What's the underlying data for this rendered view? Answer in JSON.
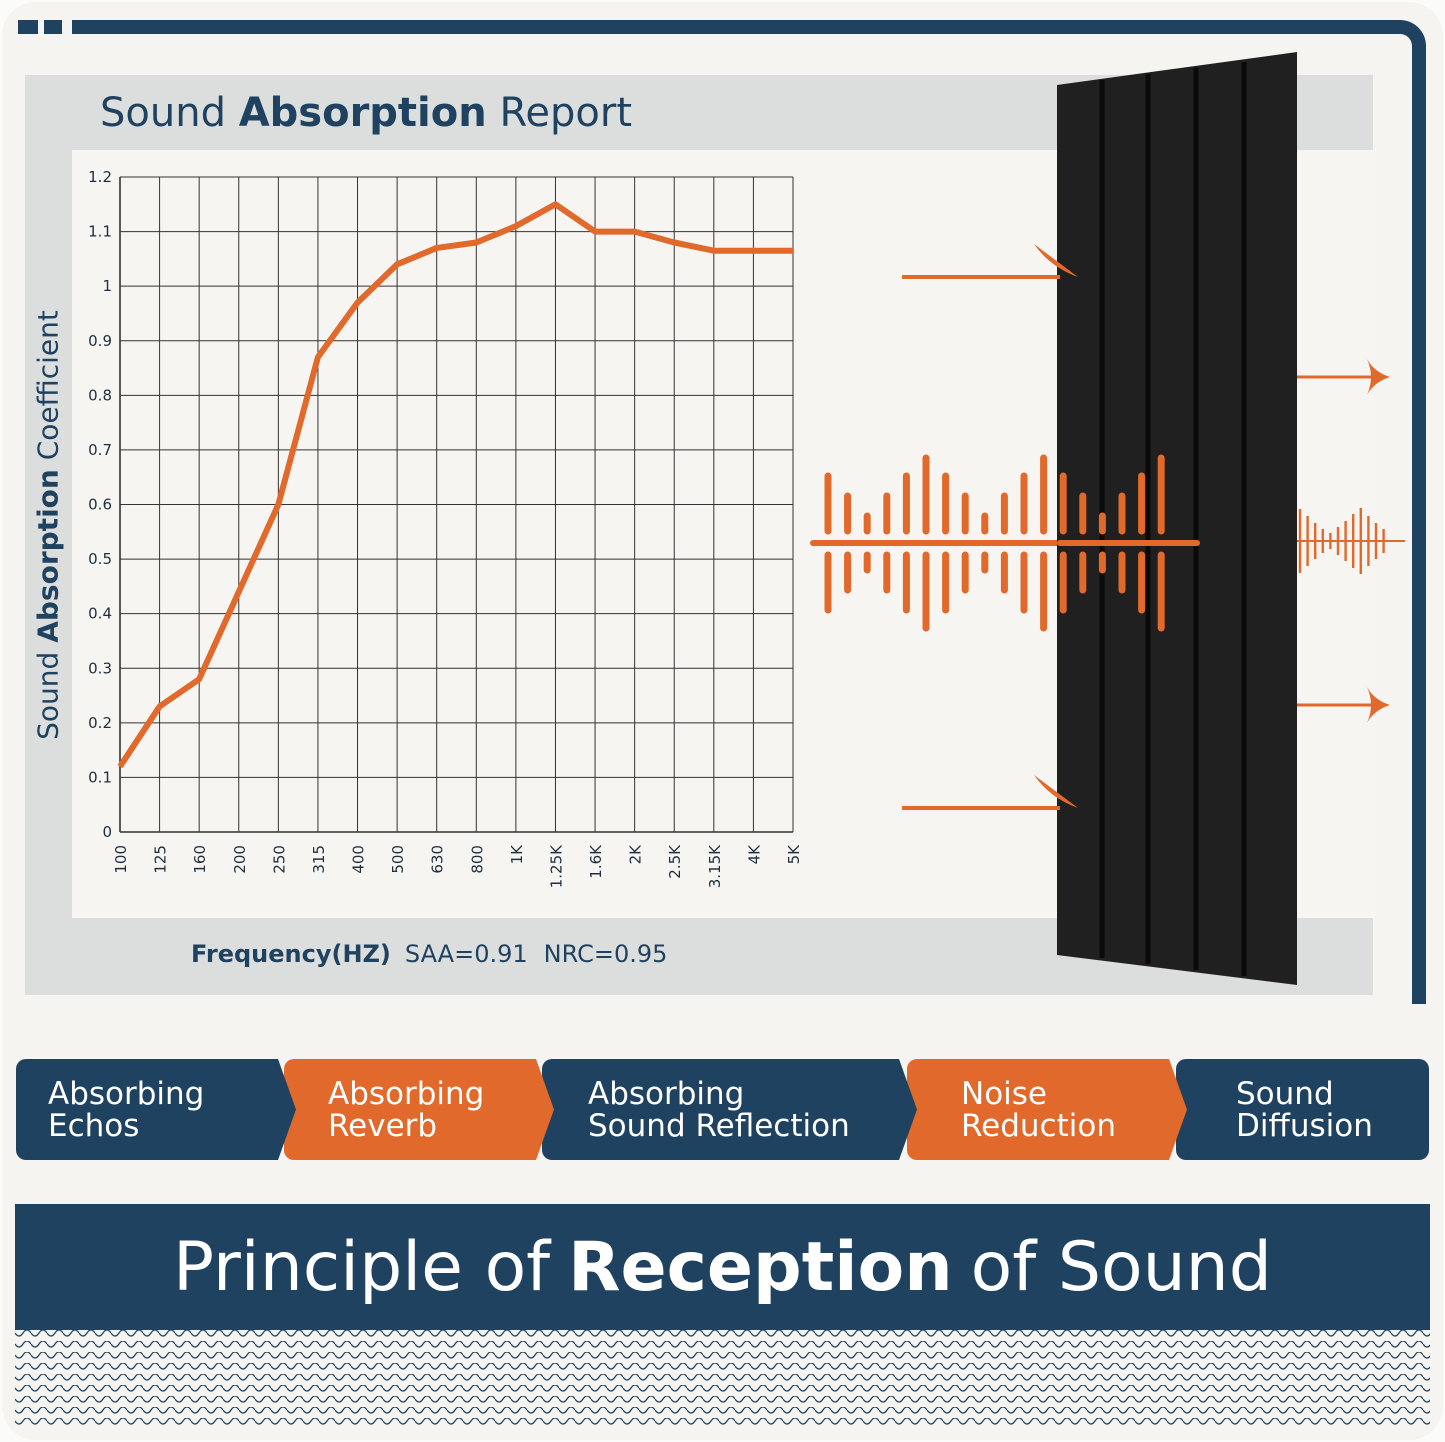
{
  "colors": {
    "navy": "#1f4261",
    "orange": "#e0692b",
    "panel": "#202020"
  },
  "header": {
    "title_pre": "Sound",
    "title_bold": "Absorption",
    "title_post": "Report"
  },
  "footer_stats": {
    "label": "Frequency(HZ)",
    "saa": "SAA=0.91",
    "nrc": "NRC=0.95"
  },
  "chart_data": {
    "type": "line",
    "title": "Sound Absorption Report",
    "xlabel": "Frequency(HZ)",
    "ylabel": "Sound Absorption Coefficient",
    "ylabel_pre": "Sound",
    "ylabel_bold": "Absorption",
    "ylabel_post": "Coefficient",
    "categories": [
      "100",
      "125",
      "160",
      "200",
      "250",
      "315",
      "400",
      "500",
      "630",
      "800",
      "1K",
      "1.25K",
      "1.6K",
      "2K",
      "2.5K",
      "3.15K",
      "4K",
      "5K"
    ],
    "values": [
      0.12,
      0.23,
      0.28,
      0.44,
      0.6,
      0.87,
      0.97,
      1.04,
      1.07,
      1.08,
      1.11,
      1.15,
      1.1,
      1.1,
      1.08,
      1.065,
      1.065,
      1.065
    ],
    "ylim": [
      0,
      1.2
    ],
    "yticks": [
      "0",
      "0.1",
      "0.2",
      "0.3",
      "0.4",
      "0.5",
      "0.6",
      "0.7",
      "0.8",
      "0.9",
      "1",
      "1.1",
      "1.2"
    ],
    "grid": true
  },
  "features": [
    {
      "label": "Absorbing\nEchos"
    },
    {
      "label": "Absorbing\nReverb"
    },
    {
      "label": "Absorbing\nSound Reflection"
    },
    {
      "label": "Noise\nReduction"
    },
    {
      "label": "Sound\nDiffusion"
    }
  ],
  "banner": {
    "pre": "Principle of",
    "bold": "Reception",
    "post": "of Sound"
  }
}
